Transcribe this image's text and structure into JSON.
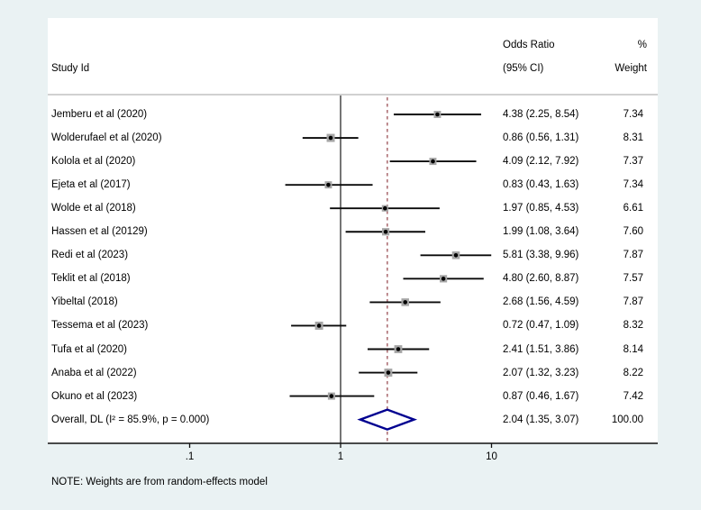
{
  "header": {
    "study_col": "Study Id",
    "or_col_line1": "Odds Ratio",
    "or_col_line2": "(95% CI)",
    "weight_col_line1": "%",
    "weight_col_line2": "Weight"
  },
  "note": "NOTE: Weights are from random-effects model",
  "chart_data": {
    "type": "forest",
    "x_scale": "log10",
    "xlabel": "",
    "x_ticks": [
      0.1,
      1,
      10
    ],
    "x_tick_labels": [
      ".1",
      "1",
      "10"
    ],
    "null_line_value": 1,
    "overall_reference_line_value": 2.04,
    "studies": [
      {
        "label": "Jemberu et al (2020)",
        "or": 4.38,
        "lo": 2.25,
        "hi": 8.54,
        "or_ci": "4.38 (2.25, 8.54)",
        "weight": "7.34"
      },
      {
        "label": "Wolderufael et al (2020)",
        "or": 0.86,
        "lo": 0.56,
        "hi": 1.31,
        "or_ci": "0.86 (0.56, 1.31)",
        "weight": "8.31"
      },
      {
        "label": "Kolola et al (2020)",
        "or": 4.09,
        "lo": 2.12,
        "hi": 7.92,
        "or_ci": "4.09 (2.12, 7.92)",
        "weight": "7.37"
      },
      {
        "label": "Ejeta et al (2017)",
        "or": 0.83,
        "lo": 0.43,
        "hi": 1.63,
        "or_ci": "0.83 (0.43, 1.63)",
        "weight": "7.34"
      },
      {
        "label": "Wolde et al (2018)",
        "or": 1.97,
        "lo": 0.85,
        "hi": 4.53,
        "or_ci": "1.97 (0.85, 4.53)",
        "weight": "6.61"
      },
      {
        "label": "Hassen et al (20129)",
        "or": 1.99,
        "lo": 1.08,
        "hi": 3.64,
        "or_ci": "1.99 (1.08, 3.64)",
        "weight": "7.60"
      },
      {
        "label": "Redi et al (2023)",
        "or": 5.81,
        "lo": 3.38,
        "hi": 9.96,
        "or_ci": "5.81 (3.38, 9.96)",
        "weight": "7.87"
      },
      {
        "label": "Teklit et al (2018)",
        "or": 4.8,
        "lo": 2.6,
        "hi": 8.87,
        "or_ci": "4.80 (2.60, 8.87)",
        "weight": "7.57"
      },
      {
        "label": "Yibeltal (2018)",
        "or": 2.68,
        "lo": 1.56,
        "hi": 4.59,
        "or_ci": "2.68 (1.56, 4.59)",
        "weight": "7.87"
      },
      {
        "label": "Tessema et al (2023)",
        "or": 0.72,
        "lo": 0.47,
        "hi": 1.09,
        "or_ci": "0.72 (0.47, 1.09)",
        "weight": "8.32"
      },
      {
        "label": "Tufa et al (2020)",
        "or": 2.41,
        "lo": 1.51,
        "hi": 3.86,
        "or_ci": "2.41 (1.51, 3.86)",
        "weight": "8.14"
      },
      {
        "label": "Anaba et al (2022)",
        "or": 2.07,
        "lo": 1.32,
        "hi": 3.23,
        "or_ci": "2.07 (1.32, 3.23)",
        "weight": "8.22"
      },
      {
        "label": "Okuno et al (2023)",
        "or": 0.87,
        "lo": 0.46,
        "hi": 1.67,
        "or_ci": "0.87 (0.46, 1.67)",
        "weight": "7.42"
      }
    ],
    "overall": {
      "label": "Overall, DL (I² = 85.9%, p = 0.000)",
      "or": 2.04,
      "lo": 1.35,
      "hi": 3.07,
      "or_ci": "2.04 (1.35, 3.07)",
      "weight": "100.00"
    },
    "colors": {
      "background": "#eaf2f3",
      "panel": "#ffffff",
      "ci_line": "#0a0a0a",
      "weight_square": "#a6a6a6",
      "point_marker": "#000000",
      "null_line": "#3a3a3a",
      "dashed_line": "#9a4f55",
      "diamond_stroke": "#000090",
      "axis": "#111111",
      "separator": "#c2c2c2"
    }
  }
}
